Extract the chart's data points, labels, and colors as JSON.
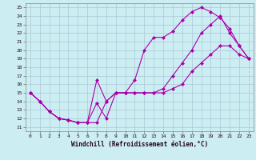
{
  "xlabel": "Windchill (Refroidissement éolien,°C)",
  "bg_color": "#cceef2",
  "grid_color": "#aac8d8",
  "line_color": "#aa00aa",
  "xlim": [
    -0.5,
    23.5
  ],
  "ylim": [
    10.5,
    25.5
  ],
  "xticks": [
    0,
    1,
    2,
    3,
    4,
    5,
    6,
    7,
    8,
    9,
    10,
    11,
    12,
    13,
    14,
    15,
    16,
    17,
    18,
    19,
    20,
    21,
    22,
    23
  ],
  "yticks": [
    11,
    12,
    13,
    14,
    15,
    16,
    17,
    18,
    19,
    20,
    21,
    22,
    23,
    24,
    25
  ],
  "line1_x": [
    0,
    1,
    2,
    3,
    4,
    5,
    6,
    7,
    8,
    9,
    10,
    11,
    12,
    13,
    14,
    15,
    16,
    17,
    18,
    19,
    20,
    21,
    22,
    23
  ],
  "line1_y": [
    15.0,
    14.0,
    12.8,
    12.0,
    11.8,
    11.5,
    11.5,
    16.5,
    14.0,
    15.0,
    15.0,
    15.0,
    15.0,
    15.0,
    15.5,
    17.0,
    18.5,
    20.0,
    22.0,
    23.0,
    24.0,
    22.0,
    20.5,
    19.0
  ],
  "line2_x": [
    0,
    1,
    2,
    3,
    4,
    5,
    6,
    7,
    8,
    9,
    10,
    11,
    12,
    13,
    14,
    15,
    16,
    17,
    18,
    19,
    20,
    21,
    22,
    23
  ],
  "line2_y": [
    15.0,
    14.0,
    12.8,
    12.0,
    11.8,
    11.5,
    11.5,
    13.8,
    12.0,
    15.0,
    15.0,
    16.5,
    20.0,
    21.5,
    21.5,
    22.2,
    23.5,
    24.5,
    25.0,
    24.5,
    23.8,
    22.5,
    20.5,
    19.0
  ],
  "line3_x": [
    0,
    1,
    2,
    3,
    4,
    5,
    6,
    7,
    8,
    9,
    10,
    11,
    12,
    13,
    14,
    15,
    16,
    17,
    18,
    19,
    20,
    21,
    22,
    23
  ],
  "line3_y": [
    15.0,
    14.0,
    12.8,
    12.0,
    11.8,
    11.5,
    11.5,
    11.5,
    14.0,
    15.0,
    15.0,
    15.0,
    15.0,
    15.0,
    15.0,
    15.5,
    16.0,
    17.5,
    18.5,
    19.5,
    20.5,
    20.5,
    19.5,
    19.0
  ]
}
